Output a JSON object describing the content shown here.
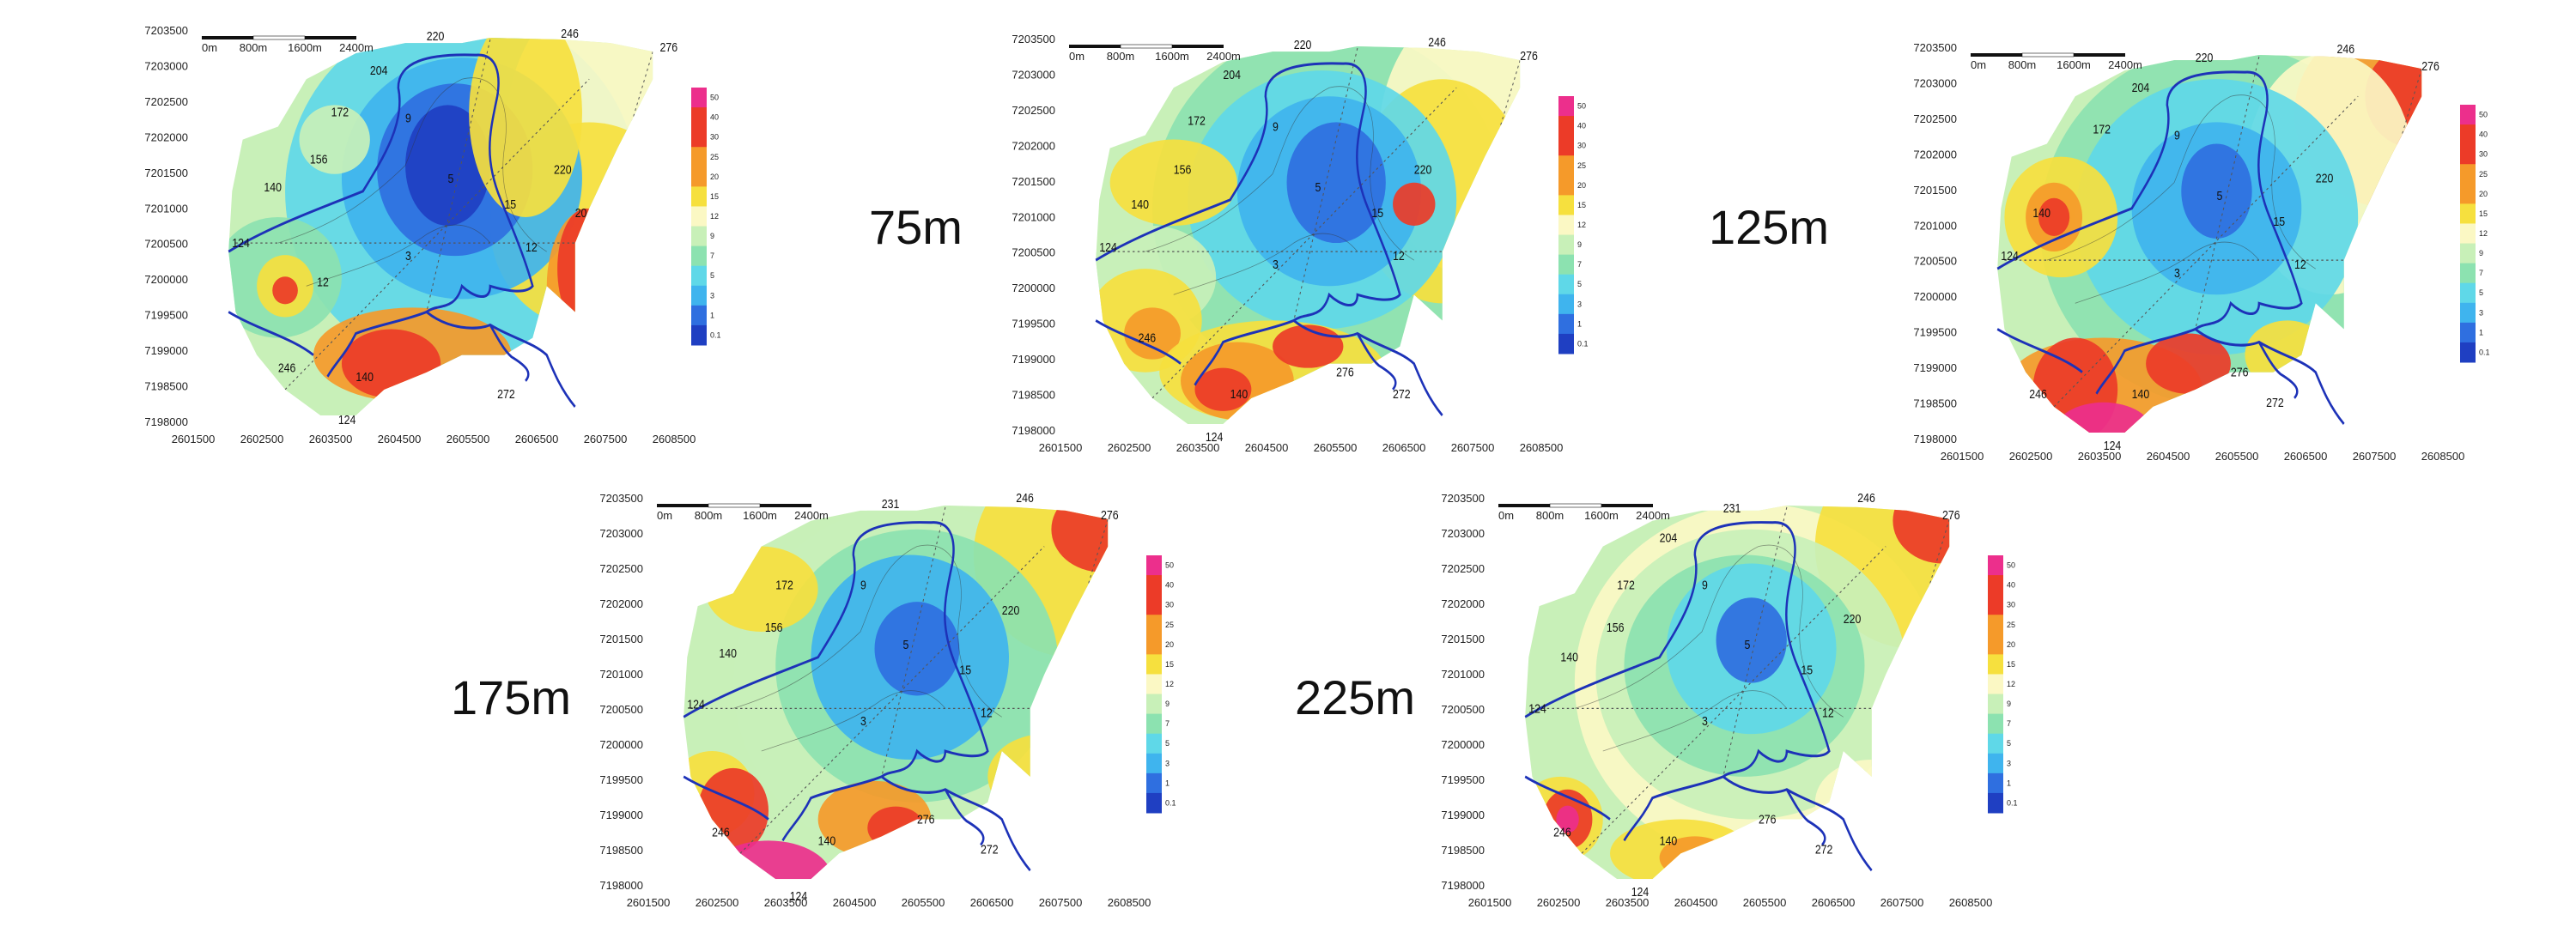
{
  "depth_labels": [
    "75m",
    "125m",
    "175m",
    "225m"
  ],
  "scale_bar": [
    "0m",
    "800m",
    "1600m",
    "2400m"
  ],
  "x_ticks": [
    "2601500",
    "2602500",
    "2603500",
    "2604500",
    "2605500",
    "2606500",
    "2607500",
    "2608500"
  ],
  "y_ticks": [
    "7203500",
    "7203000",
    "7202500",
    "7202000",
    "7201500",
    "7201000",
    "7200500",
    "7200000",
    "7199500",
    "7199000",
    "7198500",
    "7198000"
  ],
  "colorbar_ticks": [
    "50",
    "40",
    "30",
    "25",
    "20",
    "15",
    "12",
    "9",
    "7",
    "5",
    "3",
    "1",
    "0.1"
  ],
  "colors": {
    "deep_blue": "#1f3fc2",
    "blue": "#2f6fe0",
    "light_blue": "#3fb4ee",
    "cyan": "#5fd8e8",
    "green": "#8ce2b0",
    "pale_green": "#c8f0b8",
    "cream": "#fbf8c4",
    "yellow": "#f6e03e",
    "orange": "#f59a2a",
    "red": "#ec3b28",
    "magenta": "#ec2f8c",
    "boundary": "#1d32b8"
  },
  "maps": [
    {
      "id": "map-1",
      "labels": [
        "220",
        "246",
        "276",
        "204",
        "172",
        "156",
        "140",
        "124",
        "220",
        "12",
        "246",
        "140",
        "124",
        "272"
      ],
      "contour_values": [
        "9",
        "5",
        "3",
        "12",
        "15",
        "20"
      ]
    },
    {
      "id": "map-75",
      "labels": [
        "220",
        "246",
        "276",
        "204",
        "172",
        "156",
        "140",
        "124",
        "220",
        "246",
        "140",
        "276",
        "124",
        "272"
      ],
      "contour_values": [
        "9",
        "5",
        "3",
        "12",
        "15"
      ]
    },
    {
      "id": "map-125",
      "labels": [
        "220",
        "246",
        "276",
        "204",
        "172",
        "140",
        "124",
        "220",
        "246",
        "140",
        "276",
        "124",
        "272"
      ],
      "contour_values": [
        "9",
        "5",
        "3",
        "12",
        "15"
      ]
    },
    {
      "id": "map-175",
      "labels": [
        "231",
        "246",
        "276",
        "172",
        "156",
        "140",
        "124",
        "220",
        "246",
        "140",
        "276",
        "124",
        "272"
      ],
      "contour_values": [
        "9",
        "5",
        "3",
        "12",
        "15"
      ]
    },
    {
      "id": "map-225",
      "labels": [
        "231",
        "246",
        "276",
        "204",
        "172",
        "156",
        "140",
        "124",
        "220",
        "246",
        "140",
        "276",
        "124",
        "272"
      ],
      "contour_values": [
        "9",
        "5",
        "3",
        "12",
        "15"
      ]
    }
  ]
}
